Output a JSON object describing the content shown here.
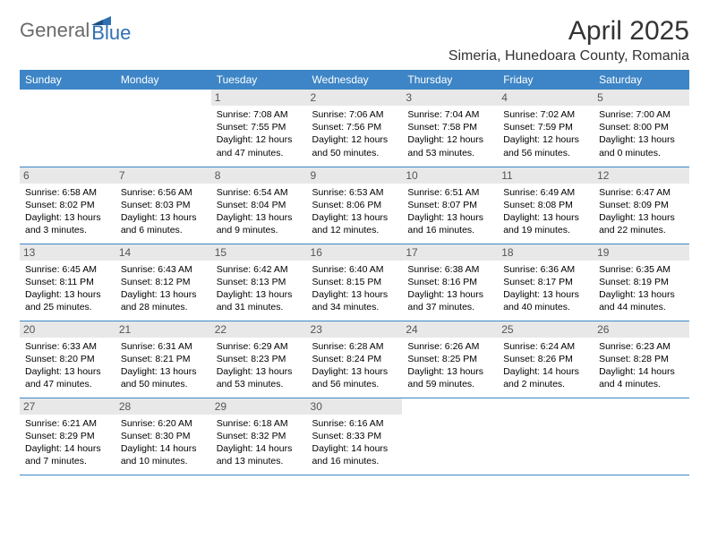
{
  "brand": {
    "part1": "General",
    "part2": "Blue",
    "text_color": "#6a6a6a",
    "accent_color": "#2f6fb3"
  },
  "header": {
    "month": "April 2025",
    "location": "Simeria, Hunedoara County, Romania"
  },
  "colors": {
    "header_bg": "#3d85c6",
    "header_text": "#ffffff",
    "daynum_bg": "#e8e8e8",
    "daynum_text": "#555555",
    "row_border": "#3d85c6",
    "page_bg": "#ffffff",
    "body_text": "#000000"
  },
  "weekdays": [
    "Sunday",
    "Monday",
    "Tuesday",
    "Wednesday",
    "Thursday",
    "Friday",
    "Saturday"
  ],
  "weeks": [
    [
      null,
      null,
      {
        "n": "1",
        "sr": "7:08 AM",
        "ss": "7:55 PM",
        "dl": "12 hours and 47 minutes."
      },
      {
        "n": "2",
        "sr": "7:06 AM",
        "ss": "7:56 PM",
        "dl": "12 hours and 50 minutes."
      },
      {
        "n": "3",
        "sr": "7:04 AM",
        "ss": "7:58 PM",
        "dl": "12 hours and 53 minutes."
      },
      {
        "n": "4",
        "sr": "7:02 AM",
        "ss": "7:59 PM",
        "dl": "12 hours and 56 minutes."
      },
      {
        "n": "5",
        "sr": "7:00 AM",
        "ss": "8:00 PM",
        "dl": "13 hours and 0 minutes."
      }
    ],
    [
      {
        "n": "6",
        "sr": "6:58 AM",
        "ss": "8:02 PM",
        "dl": "13 hours and 3 minutes."
      },
      {
        "n": "7",
        "sr": "6:56 AM",
        "ss": "8:03 PM",
        "dl": "13 hours and 6 minutes."
      },
      {
        "n": "8",
        "sr": "6:54 AM",
        "ss": "8:04 PM",
        "dl": "13 hours and 9 minutes."
      },
      {
        "n": "9",
        "sr": "6:53 AM",
        "ss": "8:06 PM",
        "dl": "13 hours and 12 minutes."
      },
      {
        "n": "10",
        "sr": "6:51 AM",
        "ss": "8:07 PM",
        "dl": "13 hours and 16 minutes."
      },
      {
        "n": "11",
        "sr": "6:49 AM",
        "ss": "8:08 PM",
        "dl": "13 hours and 19 minutes."
      },
      {
        "n": "12",
        "sr": "6:47 AM",
        "ss": "8:09 PM",
        "dl": "13 hours and 22 minutes."
      }
    ],
    [
      {
        "n": "13",
        "sr": "6:45 AM",
        "ss": "8:11 PM",
        "dl": "13 hours and 25 minutes."
      },
      {
        "n": "14",
        "sr": "6:43 AM",
        "ss": "8:12 PM",
        "dl": "13 hours and 28 minutes."
      },
      {
        "n": "15",
        "sr": "6:42 AM",
        "ss": "8:13 PM",
        "dl": "13 hours and 31 minutes."
      },
      {
        "n": "16",
        "sr": "6:40 AM",
        "ss": "8:15 PM",
        "dl": "13 hours and 34 minutes."
      },
      {
        "n": "17",
        "sr": "6:38 AM",
        "ss": "8:16 PM",
        "dl": "13 hours and 37 minutes."
      },
      {
        "n": "18",
        "sr": "6:36 AM",
        "ss": "8:17 PM",
        "dl": "13 hours and 40 minutes."
      },
      {
        "n": "19",
        "sr": "6:35 AM",
        "ss": "8:19 PM",
        "dl": "13 hours and 44 minutes."
      }
    ],
    [
      {
        "n": "20",
        "sr": "6:33 AM",
        "ss": "8:20 PM",
        "dl": "13 hours and 47 minutes."
      },
      {
        "n": "21",
        "sr": "6:31 AM",
        "ss": "8:21 PM",
        "dl": "13 hours and 50 minutes."
      },
      {
        "n": "22",
        "sr": "6:29 AM",
        "ss": "8:23 PM",
        "dl": "13 hours and 53 minutes."
      },
      {
        "n": "23",
        "sr": "6:28 AM",
        "ss": "8:24 PM",
        "dl": "13 hours and 56 minutes."
      },
      {
        "n": "24",
        "sr": "6:26 AM",
        "ss": "8:25 PM",
        "dl": "13 hours and 59 minutes."
      },
      {
        "n": "25",
        "sr": "6:24 AM",
        "ss": "8:26 PM",
        "dl": "14 hours and 2 minutes."
      },
      {
        "n": "26",
        "sr": "6:23 AM",
        "ss": "8:28 PM",
        "dl": "14 hours and 4 minutes."
      }
    ],
    [
      {
        "n": "27",
        "sr": "6:21 AM",
        "ss": "8:29 PM",
        "dl": "14 hours and 7 minutes."
      },
      {
        "n": "28",
        "sr": "6:20 AM",
        "ss": "8:30 PM",
        "dl": "14 hours and 10 minutes."
      },
      {
        "n": "29",
        "sr": "6:18 AM",
        "ss": "8:32 PM",
        "dl": "14 hours and 13 minutes."
      },
      {
        "n": "30",
        "sr": "6:16 AM",
        "ss": "8:33 PM",
        "dl": "14 hours and 16 minutes."
      },
      null,
      null,
      null
    ]
  ],
  "labels": {
    "sunrise": "Sunrise:",
    "sunset": "Sunset:",
    "daylight": "Daylight:"
  }
}
